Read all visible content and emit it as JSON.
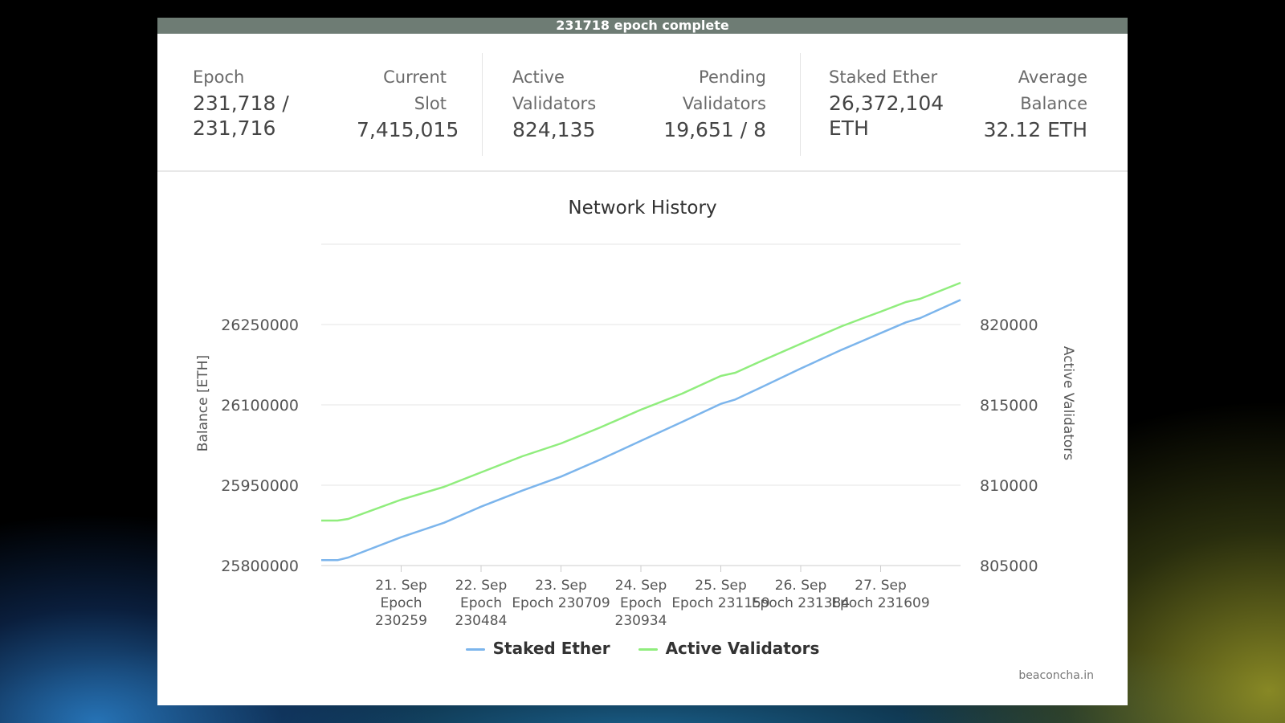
{
  "banner": "231718 epoch complete",
  "stats": {
    "epoch": {
      "label": "Epoch",
      "value": "231,718 / 231,716"
    },
    "current_slot": {
      "label": "Current Slot",
      "value": "7,415,015"
    },
    "active_validators": {
      "label": "Active Validators",
      "value": "824,135"
    },
    "pending_validators": {
      "label": "Pending Validators",
      "value": "19,651 / 8"
    },
    "staked_ether": {
      "label": "Staked Ether",
      "value": "26,372,104 ETH"
    },
    "average_balance": {
      "label": "Average Balance",
      "value": "32.12 ETH"
    }
  },
  "chart_data": {
    "type": "line",
    "title": "Network History",
    "y_left": {
      "label": "Balance [ETH]",
      "ticks": [
        25800000,
        25950000,
        26100000,
        26250000
      ],
      "ylim": [
        25800000,
        26400000
      ]
    },
    "y_right": {
      "label": "Active Validators",
      "ticks": [
        805000,
        810000,
        815000,
        820000
      ],
      "ylim": [
        805000,
        825000
      ]
    },
    "x_ticks": [
      {
        "line1": "21. Sep",
        "line2": "Epoch",
        "line3": "230259"
      },
      {
        "line1": "22. Sep",
        "line2": "Epoch",
        "line3": "230484"
      },
      {
        "line1": "23. Sep",
        "line2": "Epoch 230709",
        "line3": ""
      },
      {
        "line1": "24. Sep",
        "line2": "Epoch",
        "line3": "230934"
      },
      {
        "line1": "25. Sep",
        "line2": "Epoch 231159",
        "line3": ""
      },
      {
        "line1": "26. Sep",
        "line2": "Epoch 231384",
        "line3": ""
      },
      {
        "line1": "27. Sep",
        "line2": "Epoch 231609",
        "line3": ""
      }
    ],
    "xlim": [
      230034,
      231834
    ],
    "series": [
      {
        "name": "Staked Ether",
        "color": "#7cb5ec",
        "axis": "left",
        "points": [
          [
            230034,
            25810000
          ],
          [
            230080,
            25810000
          ],
          [
            230110,
            25815000
          ],
          [
            230259,
            25853000
          ],
          [
            230380,
            25880000
          ],
          [
            230484,
            25910000
          ],
          [
            230600,
            25940000
          ],
          [
            230709,
            25966000
          ],
          [
            230820,
            25998000
          ],
          [
            230934,
            26033000
          ],
          [
            231050,
            26068000
          ],
          [
            231159,
            26102000
          ],
          [
            231200,
            26110000
          ],
          [
            231270,
            26132000
          ],
          [
            231384,
            26168000
          ],
          [
            231500,
            26203000
          ],
          [
            231560,
            26220000
          ],
          [
            231609,
            26234000
          ],
          [
            231680,
            26254000
          ],
          [
            231720,
            26262000
          ],
          [
            231834,
            26296000
          ]
        ]
      },
      {
        "name": "Active Validators",
        "color": "#90ed7d",
        "axis": "right",
        "points": [
          [
            230034,
            807800
          ],
          [
            230080,
            807800
          ],
          [
            230110,
            807900
          ],
          [
            230259,
            809100
          ],
          [
            230380,
            809900
          ],
          [
            230484,
            810800
          ],
          [
            230600,
            811800
          ],
          [
            230709,
            812600
          ],
          [
            230820,
            813600
          ],
          [
            230934,
            814700
          ],
          [
            231050,
            815700
          ],
          [
            231159,
            816800
          ],
          [
            231200,
            817000
          ],
          [
            231270,
            817700
          ],
          [
            231384,
            818800
          ],
          [
            231500,
            819900
          ],
          [
            231560,
            820400
          ],
          [
            231609,
            820800
          ],
          [
            231680,
            821400
          ],
          [
            231720,
            821600
          ],
          [
            231834,
            822600
          ]
        ]
      }
    ],
    "grid": true,
    "legend": "bottom"
  },
  "credit": "beaconcha.in"
}
